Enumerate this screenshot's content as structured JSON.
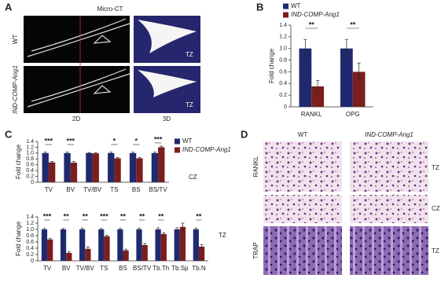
{
  "chart_data": [
    {
      "type": "bar",
      "y_label": "Fold change",
      "categories": [
        "RANKL",
        "OPG"
      ],
      "series": [
        {
          "name": "WT",
          "color": "#1f2a6e",
          "values": [
            1.0,
            1.0
          ],
          "errors": [
            0.15,
            0.15
          ]
        },
        {
          "name": "IND-COMP-Ang1",
          "color": "#7b1e1e",
          "values": [
            0.35,
            0.6
          ],
          "errors": [
            0.1,
            0.15
          ]
        }
      ],
      "significance": [
        "**",
        "**"
      ],
      "ylim": [
        0,
        1.4
      ],
      "yticks": [
        0,
        0.2,
        0.4,
        0.6,
        0.8,
        {
          "value": 1,
          "label": "1.0"
        },
        1.2,
        1.4
      ]
    },
    {
      "type": "bar",
      "y_label": "Fold change",
      "zone_label": "CZ",
      "categories": [
        "TV",
        "BV",
        "TV/BV",
        "TS",
        "BS",
        "BS/TV"
      ],
      "series": [
        {
          "name": "WT",
          "color": "#1f2a6e",
          "values": [
            1.0,
            1.0,
            1.0,
            1.0,
            1.0,
            1.0
          ],
          "errors": [
            0.03,
            0.03,
            0.02,
            0.03,
            0.03,
            0.03
          ]
        },
        {
          "name": "IND-COMP-Ang1",
          "color": "#7b1e1e",
          "values": [
            0.68,
            0.67,
            0.99,
            0.82,
            0.82,
            1.2
          ],
          "errors": [
            0.03,
            0.04,
            0.02,
            0.03,
            0.03,
            0.04
          ]
        }
      ],
      "significance": [
        "***",
        "***",
        null,
        "*",
        "*",
        "***"
      ],
      "ylim": [
        0,
        1.4
      ],
      "yticks": [
        0,
        0.2,
        0.4,
        0.6,
        0.8,
        {
          "value": 1,
          "label": "1.0"
        },
        1.2,
        1.4
      ]
    },
    {
      "type": "bar",
      "y_label": "Fold change",
      "zone_label": "TZ",
      "categories": [
        "TV",
        "BV",
        "TV/BV",
        "TS",
        "BS",
        "BS/TV",
        "Tb.Th",
        "Tb.Sp",
        "Tb.N"
      ],
      "series": [
        {
          "color": "#1f2a6e",
          "values": [
            1.0,
            1.0,
            1.0,
            1.0,
            1.0,
            1.0,
            1.0,
            1.0,
            1.0
          ],
          "errors": [
            0.03,
            0.03,
            0.04,
            0.03,
            0.03,
            0.04,
            0.05,
            0.05,
            0.04
          ]
        },
        {
          "color": "#7b1e1e",
          "values": [
            0.68,
            0.25,
            0.38,
            0.78,
            0.33,
            0.5,
            0.85,
            1.08,
            0.45
          ],
          "errors": [
            0.03,
            0.04,
            0.06,
            0.03,
            0.04,
            0.05,
            0.04,
            0.12,
            0.06
          ]
        }
      ],
      "significance": [
        "***",
        "**",
        "**",
        "***",
        "**",
        "**",
        "**",
        null,
        "**"
      ],
      "ylim": [
        0,
        1.4
      ],
      "yticks": [
        0,
        0.2,
        0.4,
        0.6,
        0.8,
        {
          "value": 1,
          "label": "1.0"
        },
        1.2,
        1.4
      ]
    }
  ],
  "figure": {
    "panel_labels": [
      "A",
      "B",
      "C",
      "D"
    ],
    "micro_ct": {
      "title": "Micro-CT",
      "rows": [
        "WT",
        "IND-COMP-Ang1"
      ],
      "columns": [
        "2D",
        "3D"
      ],
      "image_labels": [
        "TZ",
        "TZ"
      ]
    },
    "histology": {
      "columns": [
        "WT",
        "IND-COMP-Ang1"
      ],
      "rows": [
        "RANKL",
        "TRAP"
      ],
      "image_labels": [
        "TZ",
        "CZ",
        "TZ"
      ]
    }
  }
}
